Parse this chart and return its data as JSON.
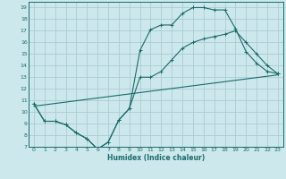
{
  "title": "",
  "xlabel": "Humidex (Indice chaleur)",
  "bg_color": "#cce8ec",
  "grid_color": "#aaccd4",
  "line_color": "#1a6b6b",
  "xlim": [
    -0.5,
    23.5
  ],
  "ylim": [
    7,
    19.5
  ],
  "xticks": [
    0,
    1,
    2,
    3,
    4,
    5,
    6,
    7,
    8,
    9,
    10,
    11,
    12,
    13,
    14,
    15,
    16,
    17,
    18,
    19,
    20,
    21,
    22,
    23
  ],
  "yticks": [
    7,
    8,
    9,
    10,
    11,
    12,
    13,
    14,
    15,
    16,
    17,
    18,
    19
  ],
  "line1_x": [
    0,
    1,
    2,
    3,
    4,
    5,
    6,
    7,
    8,
    9,
    10,
    11,
    12,
    13,
    14,
    15,
    16,
    17,
    18,
    19,
    20,
    21,
    22,
    23
  ],
  "line1_y": [
    10.7,
    9.2,
    9.2,
    8.9,
    8.2,
    7.7,
    6.8,
    7.4,
    9.3,
    10.3,
    15.3,
    17.1,
    17.5,
    17.5,
    18.5,
    19.0,
    19.0,
    18.8,
    18.8,
    17.2,
    15.2,
    14.2,
    13.5,
    13.3
  ],
  "line2_x": [
    0,
    1,
    2,
    3,
    4,
    5,
    6,
    7,
    8,
    9,
    10,
    11,
    12,
    13,
    14,
    15,
    16,
    17,
    18,
    19,
    20,
    21,
    22,
    23
  ],
  "line2_y": [
    10.7,
    9.2,
    9.2,
    8.9,
    8.2,
    7.7,
    6.8,
    7.4,
    9.3,
    10.3,
    13.0,
    13.0,
    13.5,
    14.5,
    15.5,
    16.0,
    16.3,
    16.5,
    16.7,
    17.0,
    16.0,
    15.0,
    14.0,
    13.3
  ],
  "line3_x": [
    0,
    23
  ],
  "line3_y": [
    10.5,
    13.2
  ]
}
